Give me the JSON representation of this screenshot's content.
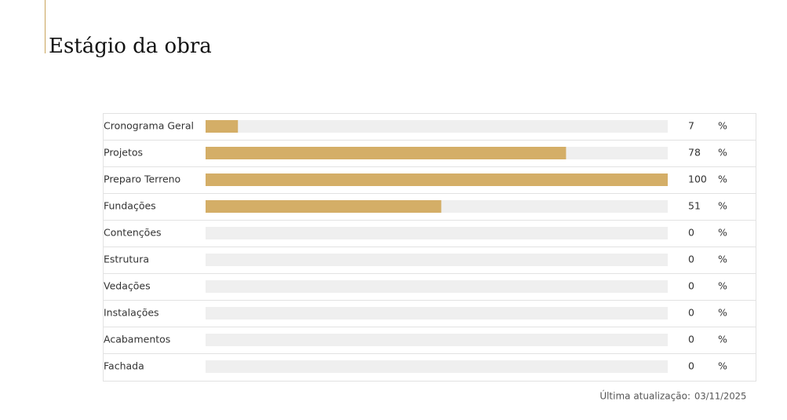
{
  "chart_data": {
    "type": "bar",
    "title": "Estágio da obra",
    "categories": [
      "Cronograma Geral",
      "Projetos",
      "Preparo Terreno",
      "Fundações",
      "Contenções",
      "Estrutura",
      "Vedações",
      "Instalações",
      "Acabamentos",
      "Fachada"
    ],
    "values": [
      7,
      78,
      100,
      51,
      0,
      0,
      0,
      0,
      0,
      0
    ],
    "unit": "%",
    "xlim": [
      0,
      100
    ],
    "color": "#d4ae67",
    "footer_label": "Última atualização:",
    "footer_date": "03/11/2025"
  }
}
